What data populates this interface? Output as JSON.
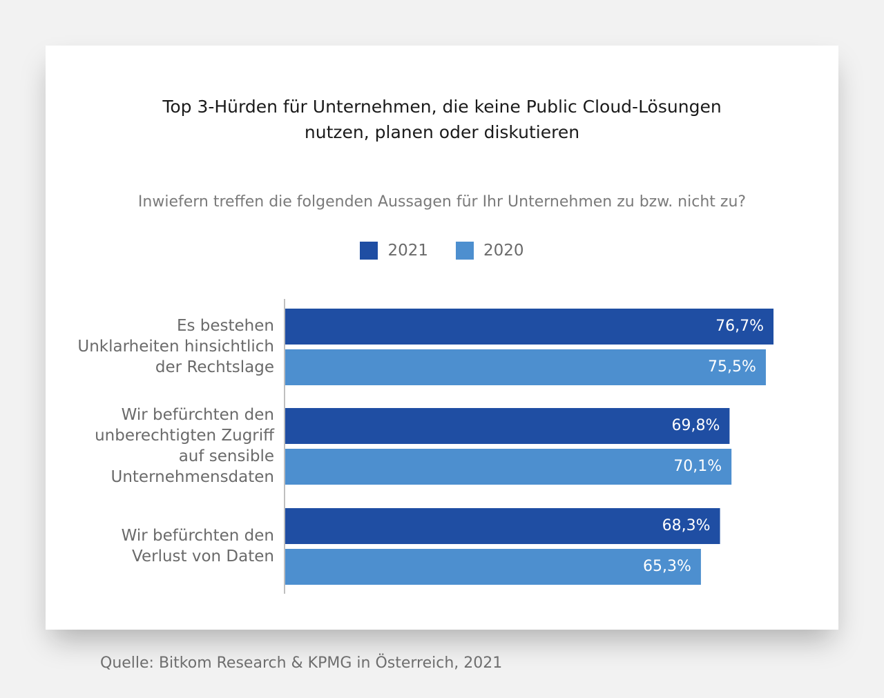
{
  "title": {
    "line1": "Top 3-Hürden für Unternehmen, die keine Public Cloud-Lösungen",
    "line2": "nutzen, planen oder diskutieren"
  },
  "question": "Inwiefern treffen die folgenden Aussagen für Ihr Unternehmen zu bzw. nicht zu?",
  "source": "Quelle: Bitkom Research & KPMG in Österreich, 2021",
  "colors": {
    "series_2021": "#1f4ea3",
    "series_2020": "#4d8fcf",
    "axis": "#bfbfbf",
    "category_text": "#6a6a6a",
    "value_text": "#ffffff"
  },
  "chart_data": {
    "type": "bar",
    "orientation": "horizontal",
    "title": "Top 3-Hürden für Unternehmen, die keine Public Cloud-Lösungen nutzen, planen oder diskutieren",
    "subtitle": "Inwiefern treffen die folgenden Aussagen für Ihr Unternehmen zu bzw. nicht zu?",
    "legend_position": "top-center",
    "xlim": [
      0,
      100
    ],
    "grid": false,
    "categories": [
      [
        "Es bestehen",
        "Unklarheiten hinsichtlich",
        "der Rechtslage"
      ],
      [
        "Wir befürchten den",
        "unberechtigten Zugriff",
        "auf sensible",
        "Unternehmensdaten"
      ],
      [
        "Wir befürchten den",
        "Verlust von Daten"
      ]
    ],
    "series": [
      {
        "name": "2021",
        "values": [
          76.7,
          69.8,
          68.3
        ],
        "labels": [
          "76,7%",
          "69,8%",
          "68,3%"
        ]
      },
      {
        "name": "2020",
        "values": [
          75.5,
          70.1,
          65.3
        ],
        "labels": [
          "75,5%",
          "70,1%",
          "65,3%"
        ]
      }
    ]
  }
}
